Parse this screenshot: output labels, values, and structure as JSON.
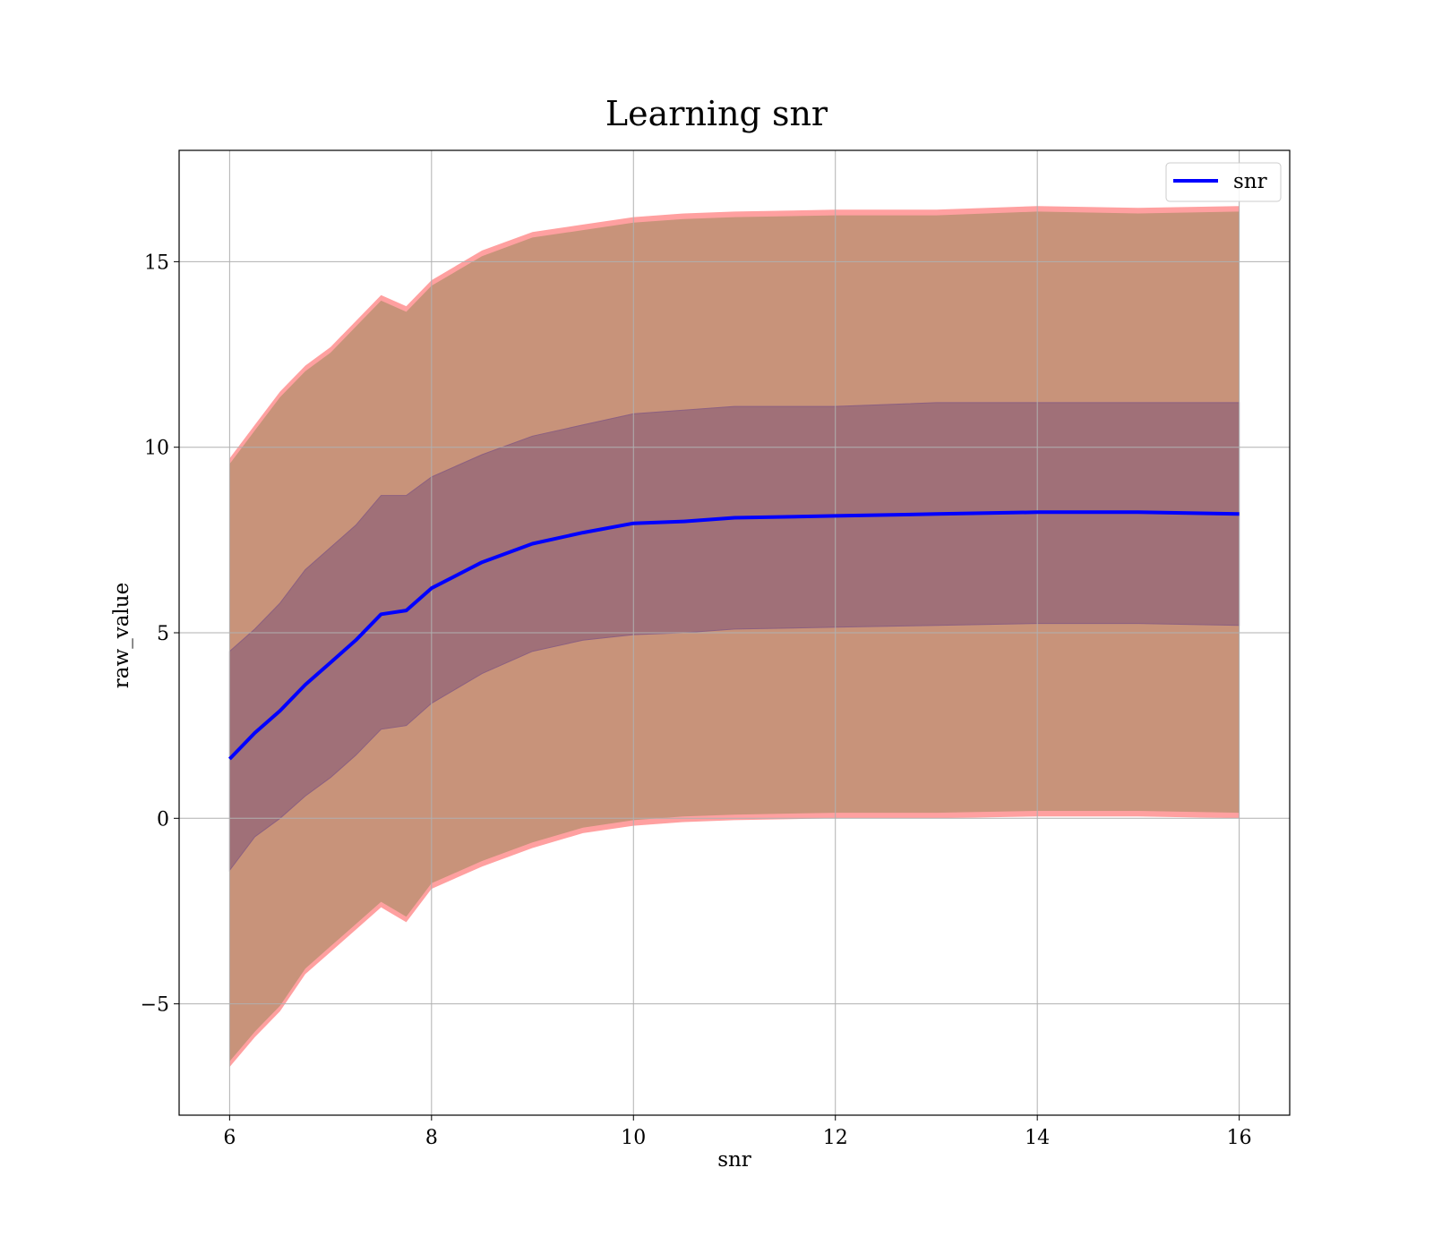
{
  "chart_data": {
    "type": "line",
    "title": "Learning snr",
    "xlabel": "snr",
    "ylabel": "raw_value",
    "xlim": [
      5.5,
      16.5
    ],
    "ylim": [
      -8,
      18
    ],
    "xticks": [
      6,
      8,
      10,
      12,
      14,
      16
    ],
    "xtick_labels": [
      "6",
      "8",
      "10",
      "12",
      "14",
      "16"
    ],
    "yticks": [
      -5,
      0,
      5,
      10,
      15
    ],
    "ytick_labels": [
      "−5",
      "0",
      "5",
      "10",
      "15"
    ],
    "grid": true,
    "legend": {
      "placement": "top-right",
      "entries": [
        "snr"
      ]
    },
    "colors": {
      "mean_line": "#0000ff",
      "outer_band_edge": "#ff8080",
      "outer_band_fill": "#c8937a",
      "inner_band_fill": "#a07078",
      "inner_band_edge": "#8c6080",
      "grid": "#b0b0b0"
    },
    "x": [
      6.0,
      6.25,
      6.5,
      6.75,
      7.0,
      7.25,
      7.5,
      7.75,
      8.0,
      8.5,
      9.0,
      9.5,
      10.0,
      10.5,
      11.0,
      12.0,
      13.0,
      14.0,
      15.0,
      16.0
    ],
    "series": [
      {
        "name": "snr",
        "role": "mean",
        "values": [
          1.6,
          2.3,
          2.9,
          3.6,
          4.2,
          4.8,
          5.5,
          5.6,
          6.2,
          6.9,
          7.4,
          7.7,
          7.95,
          8.0,
          8.1,
          8.15,
          8.2,
          8.25,
          8.25,
          8.2
        ]
      },
      {
        "role": "inner_upper",
        "values": [
          4.5,
          5.1,
          5.8,
          6.7,
          7.3,
          7.9,
          8.7,
          8.7,
          9.2,
          9.8,
          10.3,
          10.6,
          10.9,
          11.0,
          11.1,
          11.1,
          11.2,
          11.2,
          11.2,
          11.2
        ]
      },
      {
        "role": "inner_lower",
        "values": [
          -1.4,
          -0.5,
          0.0,
          0.6,
          1.1,
          1.7,
          2.4,
          2.5,
          3.1,
          3.9,
          4.5,
          4.8,
          4.95,
          5.0,
          5.1,
          5.15,
          5.2,
          5.25,
          5.25,
          5.2
        ]
      },
      {
        "role": "outer_upper",
        "values": [
          9.7,
          10.6,
          11.5,
          12.2,
          12.7,
          13.4,
          14.1,
          13.8,
          14.5,
          15.3,
          15.8,
          16.0,
          16.2,
          16.3,
          16.35,
          16.4,
          16.4,
          16.5,
          16.45,
          16.5
        ]
      },
      {
        "role": "outer_lower",
        "values": [
          -6.7,
          -5.9,
          -5.2,
          -4.2,
          -3.6,
          -3.0,
          -2.4,
          -2.8,
          -1.9,
          -1.3,
          -0.8,
          -0.4,
          -0.2,
          -0.1,
          -0.05,
          0.0,
          0.0,
          0.05,
          0.05,
          0.0
        ]
      }
    ]
  }
}
